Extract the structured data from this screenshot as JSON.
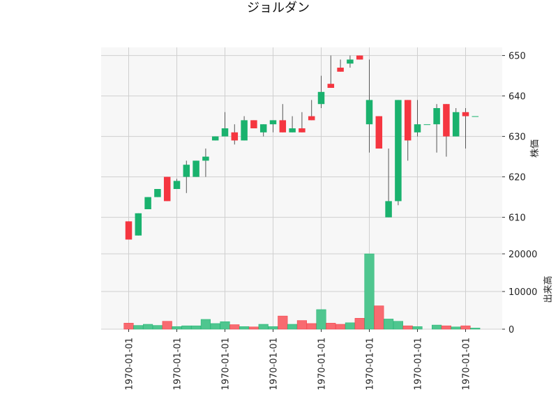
{
  "chart_data": {
    "type": "candlestick",
    "title": "ジョルダン",
    "ylabel_price": "株価",
    "ylabel_volume": "出来高",
    "price_ylim": [
      602,
      652
    ],
    "volume_ylim": [
      0,
      20000
    ],
    "price_yticks": [
      610,
      620,
      630,
      640,
      650
    ],
    "price_ytick_labels": [
      "610",
      "620",
      "630",
      "640",
      "650"
    ],
    "volume_yticks": [
      0,
      10000,
      20000
    ],
    "volume_ytick_labels": [
      "0",
      "10000",
      "20000"
    ],
    "xtick_index": [
      1,
      6,
      11,
      16,
      21,
      26,
      31,
      36
    ],
    "xtick_labels": [
      "1970-01-01",
      "1970-01-01",
      "1970-01-01",
      "1970-01-01",
      "1970-01-01",
      "1970-01-01",
      "1970-01-01",
      "1970-01-01"
    ],
    "grid": true,
    "colors": {
      "up": "#1ab26e",
      "down": "#f53640",
      "volume_up": "#4fc68f",
      "volume_down": "#f86a70",
      "wick": "#555555",
      "panel_bg": "#f7f7f7",
      "grid": "#cfcfcf"
    },
    "candles": [
      {
        "open": 609,
        "high": 609,
        "low": 604.5,
        "close": 604.5,
        "volume": 1600
      },
      {
        "open": 605.5,
        "high": 611,
        "low": 605.5,
        "close": 611,
        "volume": 1000
      },
      {
        "open": 612,
        "high": 615,
        "low": 612,
        "close": 615,
        "volume": 1300
      },
      {
        "open": 615,
        "high": 617,
        "low": 615,
        "close": 617,
        "volume": 1000
      },
      {
        "open": 620,
        "high": 620,
        "low": 614,
        "close": 614,
        "volume": 2100
      },
      {
        "open": 617,
        "high": 619.5,
        "low": 617,
        "close": 619,
        "volume": 700
      },
      {
        "open": 620,
        "high": 624,
        "low": 616,
        "close": 623,
        "volume": 900
      },
      {
        "open": 620,
        "high": 624,
        "low": 620,
        "close": 624,
        "volume": 900
      },
      {
        "open": 624,
        "high": 627,
        "low": 620,
        "close": 625,
        "volume": 2600
      },
      {
        "open": 629,
        "high": 630,
        "low": 629,
        "close": 630,
        "volume": 1500
      },
      {
        "open": 630,
        "high": 636,
        "low": 630,
        "close": 632,
        "volume": 2000
      },
      {
        "open": 631,
        "high": 633,
        "low": 628,
        "close": 629,
        "volume": 1200
      },
      {
        "open": 629,
        "high": 635,
        "low": 629,
        "close": 634,
        "volume": 700
      },
      {
        "open": 634,
        "high": 634,
        "low": 632,
        "close": 632,
        "volume": 600
      },
      {
        "open": 631,
        "high": 633,
        "low": 630,
        "close": 633,
        "volume": 1300
      },
      {
        "open": 633,
        "high": 634,
        "low": 631,
        "close": 634,
        "volume": 700
      },
      {
        "open": 634,
        "high": 638,
        "low": 631,
        "close": 631,
        "volume": 3500
      },
      {
        "open": 631,
        "high": 635,
        "low": 631,
        "close": 632,
        "volume": 1300
      },
      {
        "open": 632,
        "high": 636,
        "low": 631,
        "close": 631,
        "volume": 2300
      },
      {
        "open": 635,
        "high": 639,
        "low": 634,
        "close": 634,
        "volume": 1500
      },
      {
        "open": 638,
        "high": 645,
        "low": 637,
        "close": 641,
        "volume": 5200
      },
      {
        "open": 643,
        "high": 650,
        "low": 642,
        "close": 642,
        "volume": 1600
      },
      {
        "open": 647,
        "high": 649,
        "low": 646,
        "close": 646,
        "volume": 1300
      },
      {
        "open": 648,
        "high": 650,
        "low": 647,
        "close": 649,
        "volume": 1700
      },
      {
        "open": 650,
        "high": 650,
        "low": 649,
        "close": 649,
        "volume": 2900
      },
      {
        "open": 633,
        "high": 649,
        "low": 626,
        "close": 639,
        "volume": 20000
      },
      {
        "open": 635,
        "high": 635,
        "low": 627,
        "close": 627,
        "volume": 6200
      },
      {
        "open": 610,
        "high": 627,
        "low": 610,
        "close": 614,
        "volume": 2700
      },
      {
        "open": 614,
        "high": 639,
        "low": 613,
        "close": 639,
        "volume": 2100
      },
      {
        "open": 639,
        "high": 639,
        "low": 624,
        "close": 629,
        "volume": 900
      },
      {
        "open": 631,
        "high": 639,
        "low": 630,
        "close": 633,
        "volume": 700
      },
      {
        "open": 633,
        "high": 633,
        "low": 633,
        "close": 633,
        "volume": 0
      },
      {
        "open": 633,
        "high": 638,
        "low": 626,
        "close": 637,
        "volume": 1100
      },
      {
        "open": 638,
        "high": 638,
        "low": 625,
        "close": 630,
        "volume": 900
      },
      {
        "open": 630,
        "high": 637,
        "low": 630,
        "close": 636,
        "volume": 600
      },
      {
        "open": 636,
        "high": 637,
        "low": 627,
        "close": 635,
        "volume": 900
      },
      {
        "open": 635,
        "high": 635,
        "low": 635,
        "close": 635,
        "volume": 300
      }
    ]
  }
}
